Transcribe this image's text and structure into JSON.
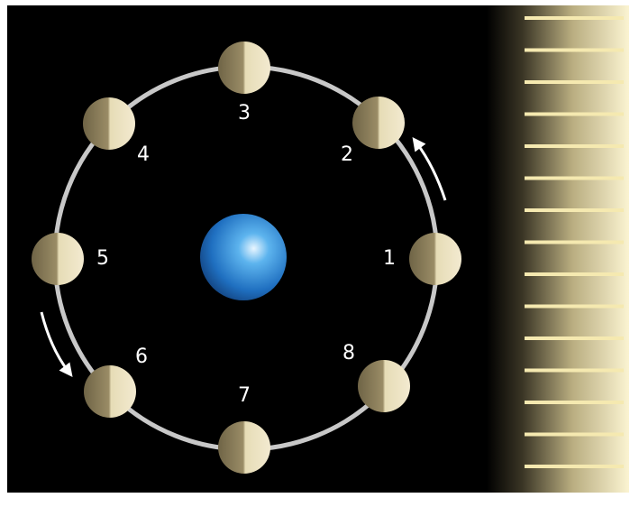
{
  "diagram": {
    "central_body": "earth-sphere",
    "light_source": "sunlight-rays",
    "orbit_direction": "counterclockwise",
    "moons": [
      {
        "label": "1"
      },
      {
        "label": "2"
      },
      {
        "label": "3"
      },
      {
        "label": "4"
      },
      {
        "label": "5"
      },
      {
        "label": "6"
      },
      {
        "label": "7"
      },
      {
        "label": "8"
      }
    ],
    "colors": {
      "background": "#000000",
      "orbit": "#c8c8c8",
      "earth": "#2a86d6",
      "moon_lit": "#efe6c2",
      "moon_dark": "#8a7c58",
      "sunlight": "#f5e9b0",
      "label": "#ffffff",
      "arrow": "#ffffff"
    }
  }
}
